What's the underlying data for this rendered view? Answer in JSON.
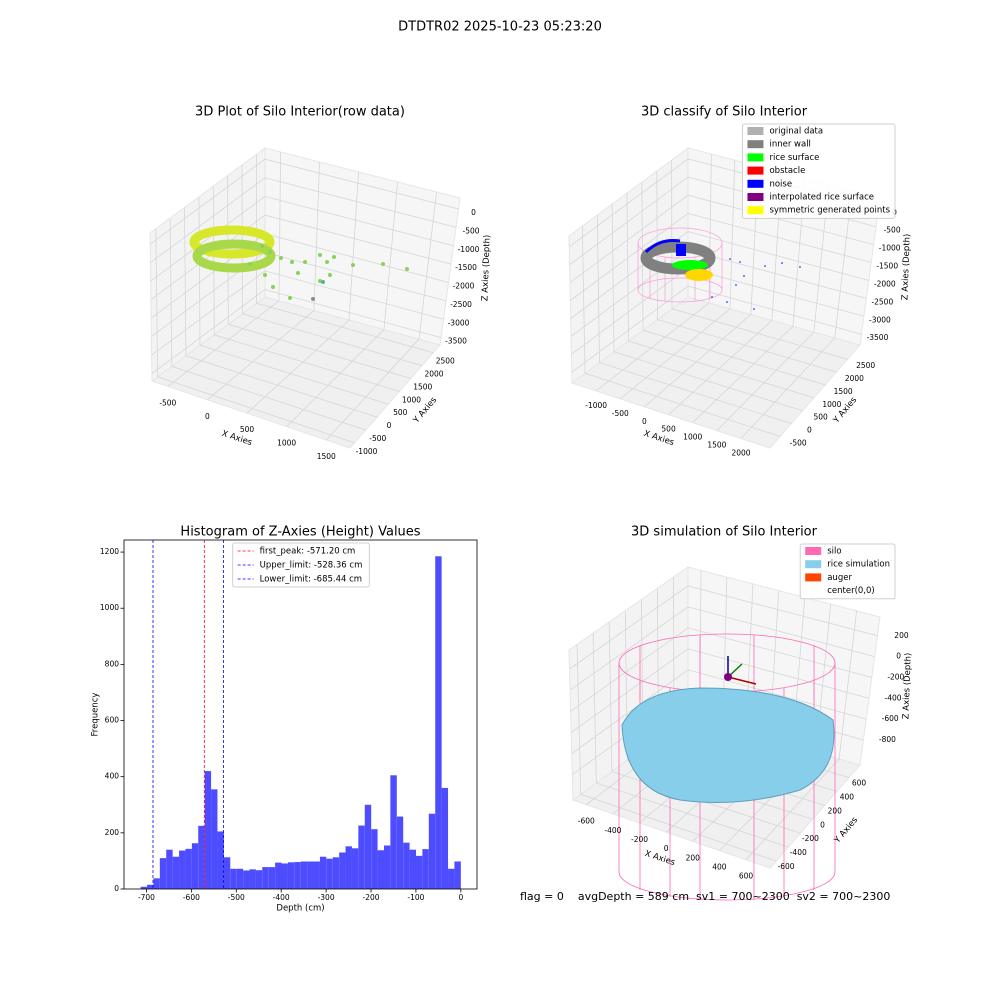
{
  "title": "DTDTR02 2025-10-23 05:23:20",
  "footer": "flag = 0    avgDepth = 589 cm  sv1 = 700~2300  sv2 = 700~2300",
  "chart_data": [
    {
      "type": "scatter3d",
      "title": "3D Plot of Silo Interior(row data)",
      "x_label": "X Axies",
      "y_label": "Y Axies",
      "z_label": "Z Axies (Depth)",
      "xlim": [
        -700,
        1800
      ],
      "xticks": [
        -500,
        0,
        500,
        1000,
        1500
      ],
      "ylim": [
        -1200,
        2800
      ],
      "yticks": [
        -1000,
        -500,
        0,
        500,
        1000,
        1500,
        2000,
        2500
      ],
      "zlim": [
        -3700,
        300
      ],
      "zticks": [
        0,
        -500,
        -1000,
        -1500,
        -2000,
        -2500,
        -3000,
        -3500
      ],
      "grid": true
    },
    {
      "type": "scatter3d",
      "title": "3D classify of Silo Interior",
      "x_label": "X Axies",
      "y_label": "Y Axies",
      "z_label": "Z Axies (Depth)",
      "xlim": [
        -1500,
        2600
      ],
      "xticks": [
        -1000,
        -500,
        0,
        500,
        1000,
        1500,
        2000
      ],
      "ylim": [
        -950,
        3050
      ],
      "yticks": [
        -500,
        0,
        500,
        1000,
        1500,
        2000,
        2500
      ],
      "zlim": [
        -3800,
        300
      ],
      "zticks": [
        0,
        -500,
        -1000,
        -1500,
        -2000,
        -2500,
        -3000,
        -3500
      ],
      "grid": true,
      "legend": "upper right",
      "legend_items": [
        {
          "name": "original data",
          "color": "#b0b0b0"
        },
        {
          "name": "inner wall",
          "color": "#808080"
        },
        {
          "name": "rice surface",
          "color": "#00ff00"
        },
        {
          "name": "obstacle",
          "color": "#ff0000"
        },
        {
          "name": "noise",
          "color": "#0000ff"
        },
        {
          "name": "interpolated rice surface",
          "color": "#800080"
        },
        {
          "name": "symmetric generated points",
          "color": "#ffff00"
        }
      ]
    },
    {
      "type": "histogram",
      "title": "Histogram of Z-Axies (Height) Values",
      "x_label": "Depth (cm)",
      "y_label": "Frequency",
      "color": "#4d4dff",
      "bins": [
        -713.0,
        -698.7,
        -684.5,
        -670.2,
        -656.0,
        -641.7,
        -627.4,
        -613.2,
        -598.9,
        -584.7,
        -570.4,
        -556.1,
        -541.9,
        -527.6,
        -513.4,
        -499.1,
        -484.8,
        -470.6,
        -456.3,
        -442.1,
        -427.8,
        -413.5,
        -399.3,
        -385.0,
        -370.8,
        -356.5,
        -342.2,
        -328.0,
        -313.7,
        -299.5,
        -285.2,
        -270.9,
        -256.7,
        -242.4,
        -228.2,
        -213.9,
        -199.6,
        -185.4,
        -171.1,
        -156.9,
        -142.6,
        -128.3,
        -114.1,
        -99.8,
        -85.6,
        -71.3,
        -57.0,
        -42.8,
        -28.5,
        -14.3,
        0.0
      ],
      "values": [
        8,
        15,
        38,
        110,
        140,
        115,
        137,
        143,
        163,
        225,
        420,
        355,
        205,
        113,
        72,
        72,
        66,
        70,
        67,
        78,
        78,
        94,
        91,
        95,
        96,
        98,
        98,
        98,
        115,
        108,
        113,
        130,
        152,
        145,
        226,
        300,
        213,
        138,
        155,
        405,
        258,
        165,
        140,
        118,
        142,
        268,
        1185,
        360,
        72,
        98
      ],
      "xlim": [
        -750,
        36
      ],
      "xticks": [
        -700,
        -600,
        -500,
        -400,
        -300,
        -200,
        -100,
        0
      ],
      "ylim": [
        0,
        1243
      ],
      "yticks": [
        0,
        200,
        400,
        600,
        800,
        1000,
        1200
      ],
      "legend": "upper center",
      "vlines": [
        {
          "value": -571.2,
          "label": "first_peak: -571.20 cm",
          "color": "#ff0000"
        },
        {
          "value": -528.36,
          "label": "Upper_limit: -528.36 cm",
          "color": "#0000ff"
        },
        {
          "value": -685.44,
          "label": "Lower_limit: -685.44 cm",
          "color": "#0000ff"
        }
      ]
    },
    {
      "type": "surface3d",
      "title": "3D simulation of Silo Interior",
      "x_label": "X Axies",
      "y_label": "Y Axies",
      "z_label": "Z Axies (Depth)",
      "xlim": [
        -700,
        780
      ],
      "xticks": [
        -600,
        -400,
        -200,
        0,
        200,
        400,
        600
      ],
      "ylim": [
        -700,
        780
      ],
      "yticks": [
        -600,
        -400,
        -200,
        0,
        200,
        400,
        600
      ],
      "zlim": [
        -1040,
        380
      ],
      "zticks": [
        200,
        0,
        -200,
        -400,
        -600,
        -800
      ],
      "grid": true,
      "legend": "upper right",
      "legend_items": [
        {
          "name": "silo",
          "color": "#ff69b4"
        },
        {
          "name": "rice simulation",
          "color": "#87ceeb"
        },
        {
          "name": "auger",
          "color": "#ff4500"
        },
        {
          "name": "center(0,0)",
          "color": "#ffffff"
        }
      ]
    }
  ]
}
